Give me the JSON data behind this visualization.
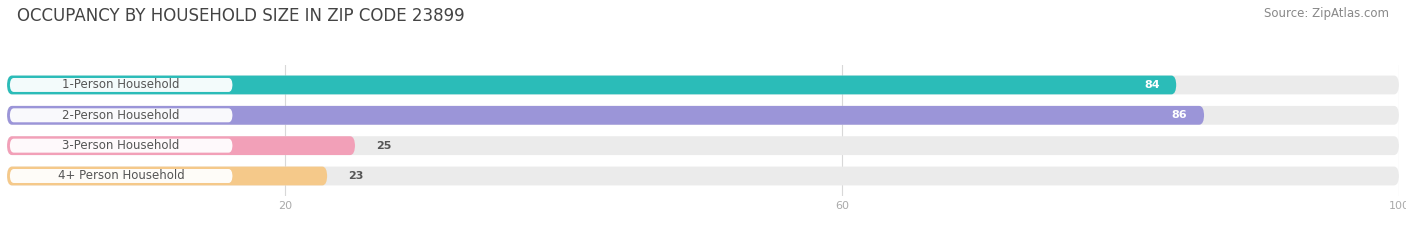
{
  "title": "OCCUPANCY BY HOUSEHOLD SIZE IN ZIP CODE 23899",
  "source": "Source: ZipAtlas.com",
  "categories": [
    "1-Person Household",
    "2-Person Household",
    "3-Person Household",
    "4+ Person Household"
  ],
  "values": [
    84,
    86,
    25,
    23
  ],
  "bar_colors": [
    "#2bbcb8",
    "#9b95d8",
    "#f2a0b8",
    "#f5c98a"
  ],
  "bg_color": "#ffffff",
  "bar_bg_color": "#ebebeb",
  "xlim": [
    0,
    100
  ],
  "xticks": [
    20,
    60,
    100
  ],
  "title_fontsize": 12,
  "source_fontsize": 8.5,
  "label_fontsize": 8.5,
  "value_fontsize": 8,
  "bar_height": 0.62,
  "rounding_size": 0.35
}
